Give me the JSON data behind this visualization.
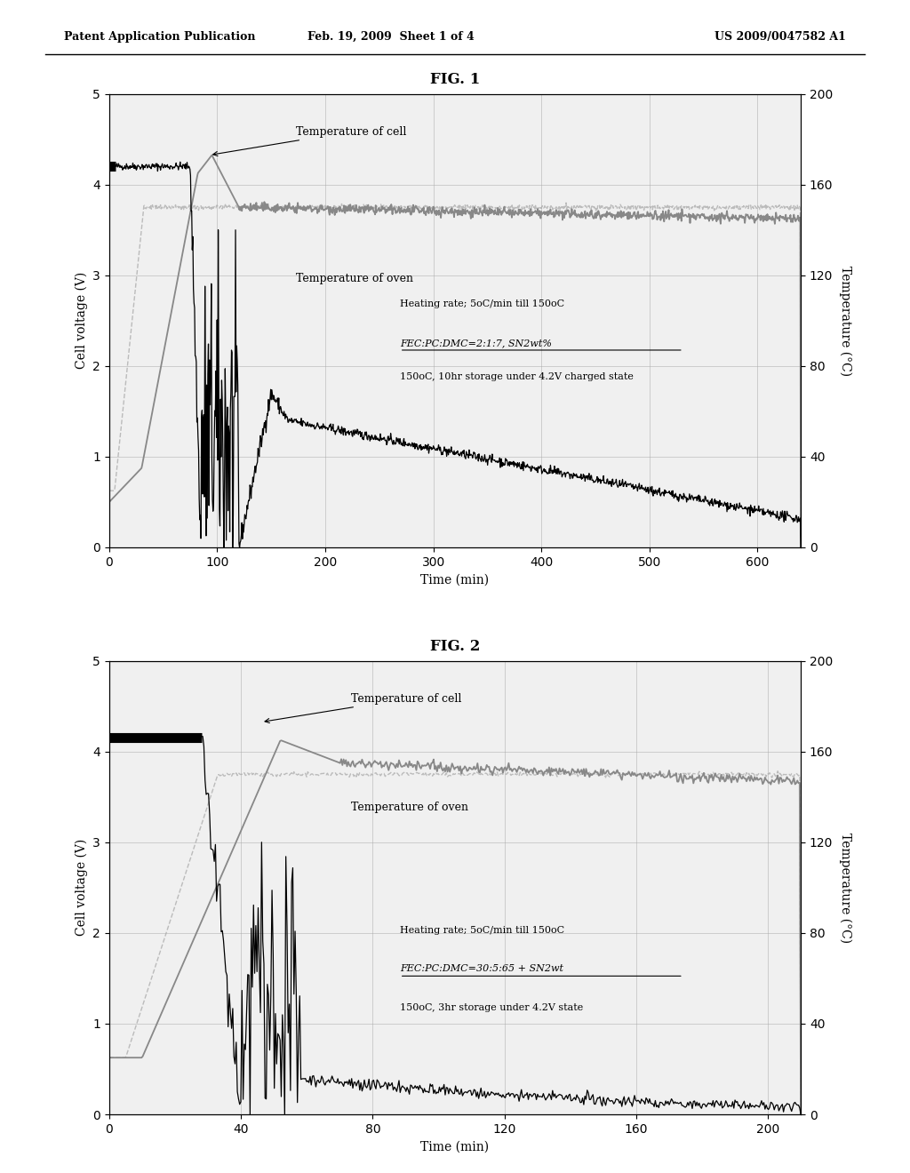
{
  "fig_title1": "FIG. 1",
  "fig_title2": "FIG. 2",
  "header_left": "Patent Application Publication",
  "header_mid": "Feb. 19, 2009  Sheet 1 of 4",
  "header_right": "US 2009/0047582 A1",
  "plot1": {
    "xlim": [
      0,
      640
    ],
    "ylim_left": [
      0,
      5
    ],
    "ylim_right": [
      0,
      200
    ],
    "xticks": [
      0,
      100,
      200,
      300,
      400,
      500,
      600
    ],
    "yticks_left": [
      0,
      1,
      2,
      3,
      4,
      5
    ],
    "yticks_right": [
      0,
      40,
      80,
      120,
      160,
      200
    ],
    "xlabel": "Time (min)",
    "ylabel_left": "Cell voltage (V)",
    "ylabel_right": "Temperature (°C)",
    "annotation1": "Heating rate; 5oC/min till 150oC",
    "annotation2": "FEC:PC:DMC=2:1:7, SN2wt%",
    "annotation3": "150oC, 10hr storage under 4.2V charged state",
    "label_cell_temp": "Temperature of cell",
    "label_oven_temp": "Temperature of oven"
  },
  "plot2": {
    "xlim": [
      0,
      210
    ],
    "ylim_left": [
      0,
      5
    ],
    "ylim_right": [
      0,
      200
    ],
    "xticks": [
      0,
      40,
      80,
      120,
      160,
      200
    ],
    "yticks_left": [
      0,
      1,
      2,
      3,
      4,
      5
    ],
    "yticks_right": [
      0,
      40,
      80,
      120,
      160,
      200
    ],
    "xlabel": "Time (min)",
    "ylabel_left": "Cell voltage (V)",
    "ylabel_right": "Temperature (°C)",
    "annotation1": "Heating rate; 5oC/min till 150oC",
    "annotation2": "FEC:PC:DMC=30:5:65 + SN2wt",
    "annotation3": "150oC, 3hr storage under 4.2V state",
    "label_cell_temp": "Temperature of cell",
    "label_oven_temp": "Temperature of oven"
  },
  "bg_color": "#ffffff",
  "grid_color": "#aaaaaa"
}
